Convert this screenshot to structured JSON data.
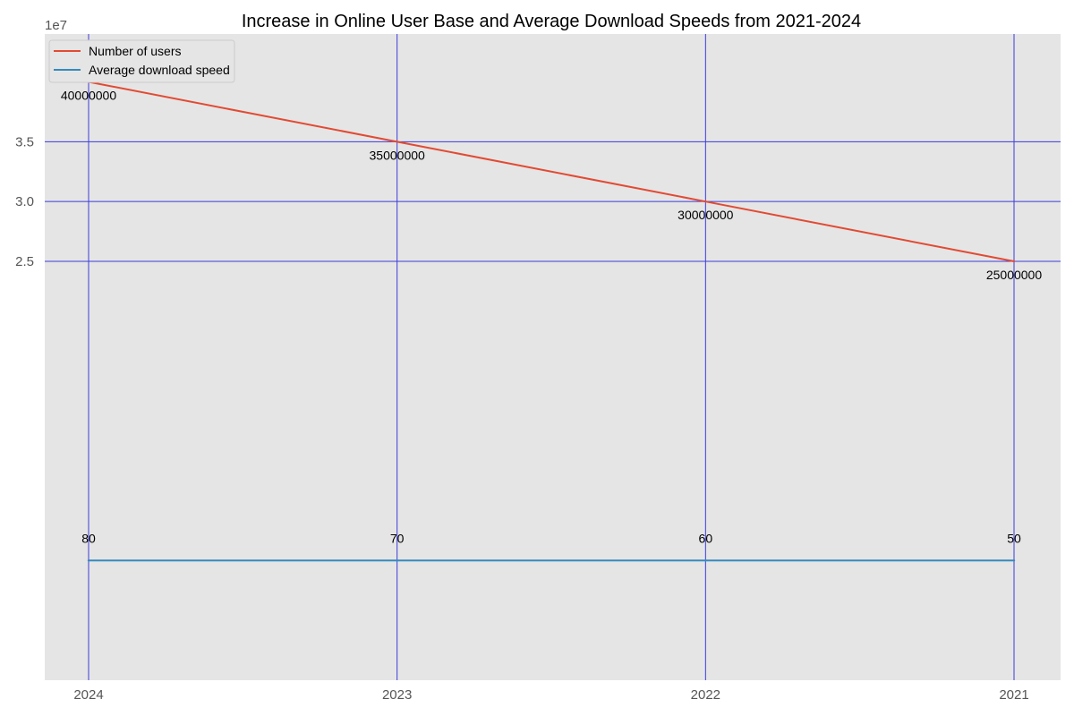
{
  "chart_data": {
    "type": "line",
    "title": "Increase in Online User Base and Average Download Speeds from 2021-2024",
    "xlabel": "",
    "ylabel": "",
    "y_offset_label": "1e7",
    "categories": [
      "2024",
      "2023",
      "2022",
      "2021"
    ],
    "y_ticks": [
      2.5,
      3.0,
      3.5
    ],
    "y_tick_labels": [
      "2.5",
      "3.0",
      "3.5"
    ],
    "y_scale": 10000000,
    "ylim": [
      -1.0,
      4.4
    ],
    "grid": true,
    "grid_color": "#3b3bdc",
    "legend_position": "upper-left",
    "series": [
      {
        "name": "Number of users",
        "color": "#e24a33",
        "values": [
          40000000,
          35000000,
          30000000,
          25000000
        ],
        "labels": [
          "40000000",
          "35000000",
          "30000000",
          "25000000"
        ]
      },
      {
        "name": "Average download speed",
        "color": "#348abd",
        "values": [
          80,
          70,
          60,
          50
        ],
        "labels": [
          "80",
          "70",
          "60",
          "50"
        ]
      }
    ]
  },
  "colors": {
    "plot_bg": "#e5e5e5"
  }
}
